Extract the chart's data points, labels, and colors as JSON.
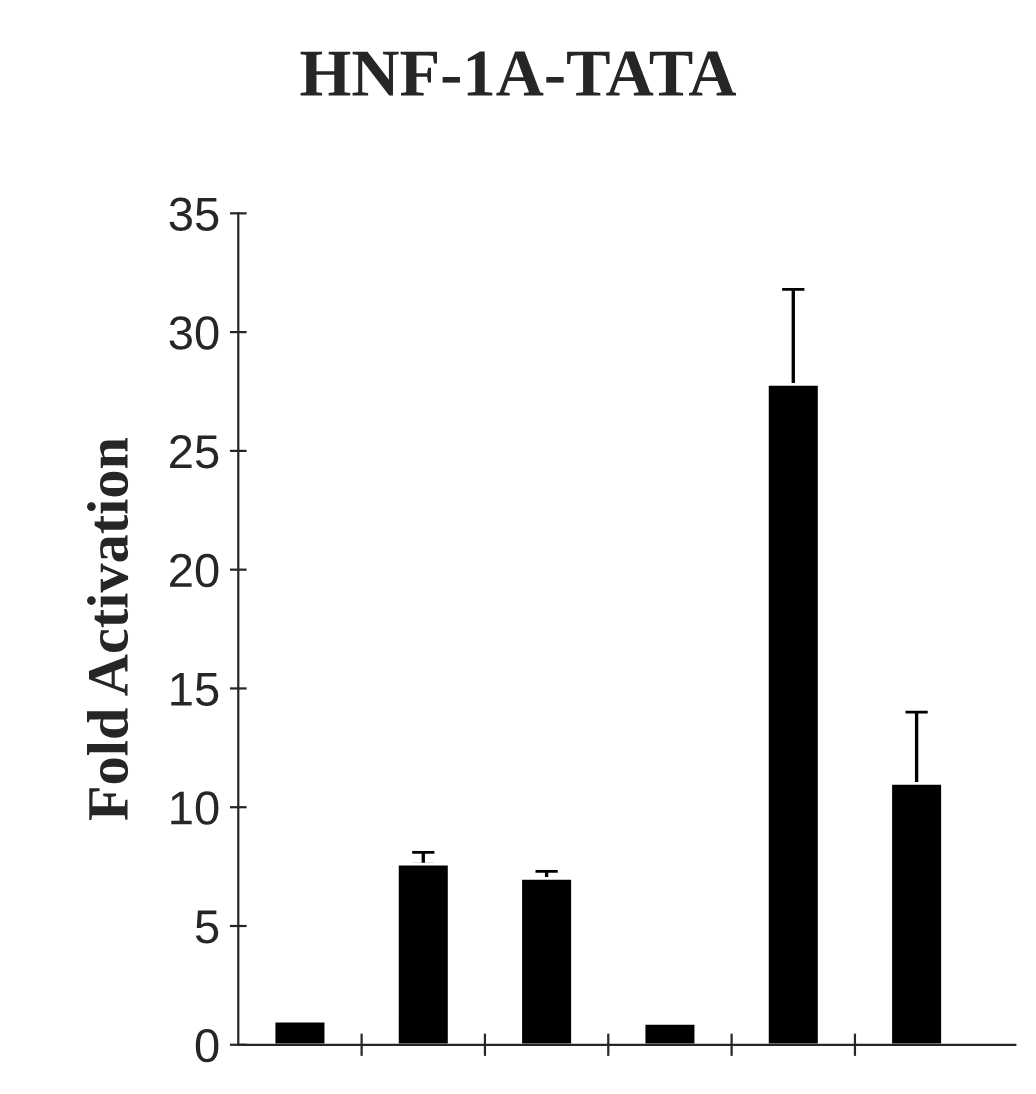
{
  "chart_data": {
    "type": "bar",
    "title": "HNF-1A-TATA",
    "ylabel": "Fold Activation",
    "categories": [
      null,
      null,
      null,
      null,
      null,
      null
    ],
    "values": [
      1.0,
      7.6,
      7.0,
      0.9,
      27.8,
      11.0
    ],
    "errors": [
      null,
      [
        7.6,
        8.1
      ],
      [
        7.0,
        7.3
      ],
      null,
      [
        27.8,
        31.8
      ],
      [
        11.0,
        14.0
      ]
    ],
    "color": "#000000",
    "ylim": [
      0,
      35
    ],
    "yticks": [
      0,
      5,
      10,
      15,
      20,
      25,
      30,
      35
    ],
    "grid": false,
    "legend": false
  }
}
